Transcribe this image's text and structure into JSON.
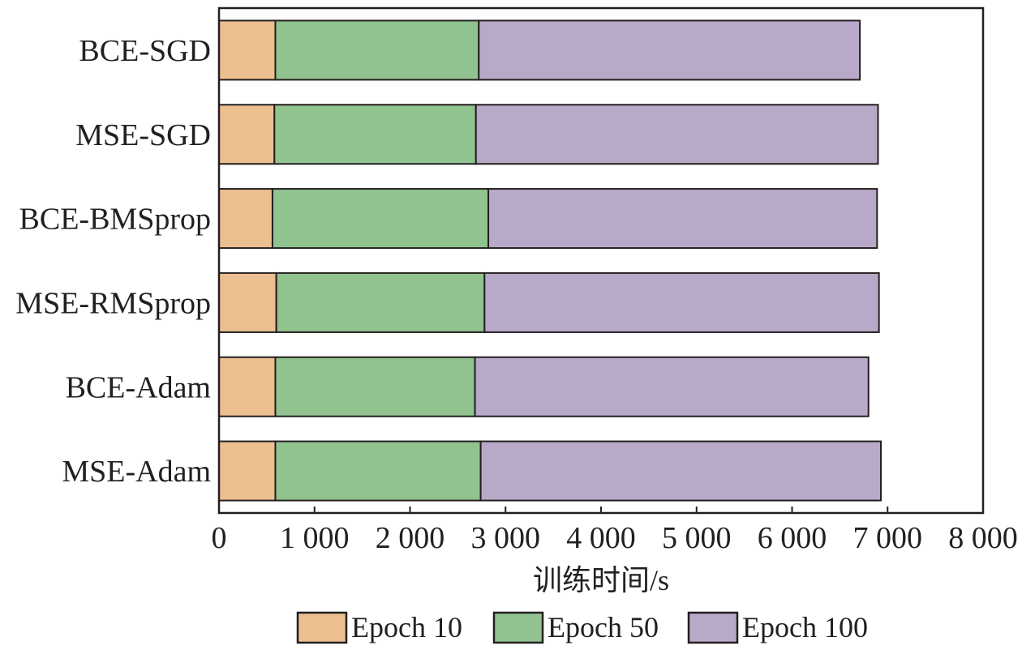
{
  "chart_data": {
    "type": "bar",
    "orientation": "horizontal",
    "stacked": true,
    "categories": [
      "BCE-SGD",
      "MSE-SGD",
      "BCE-BMSprop",
      "MSE-RMSprop",
      "BCE-Adam",
      "MSE-Adam"
    ],
    "series": [
      {
        "name": "Epoch 10",
        "values": [
          590,
          580,
          560,
          600,
          590,
          590
        ]
      },
      {
        "name": "Epoch 50",
        "values": [
          2130,
          2110,
          2260,
          2180,
          2090,
          2150
        ]
      },
      {
        "name": "Epoch 100",
        "values": [
          3990,
          4210,
          4070,
          4130,
          4120,
          4190
        ]
      }
    ],
    "colors": [
      "#ecbf91",
      "#91c38f",
      "#b8a9c9"
    ],
    "xlabel": "训练时间/s",
    "xlim": [
      0,
      8000
    ],
    "xticks": [
      0,
      1000,
      2000,
      3000,
      4000,
      5000,
      6000,
      7000,
      8000
    ],
    "xtick_labels": [
      "0",
      "1 000",
      "2 000",
      "3 000",
      "4 000",
      "5 000",
      "6 000",
      "7 000",
      "8 000"
    ],
    "grid": false,
    "legend_position": "bottom"
  }
}
